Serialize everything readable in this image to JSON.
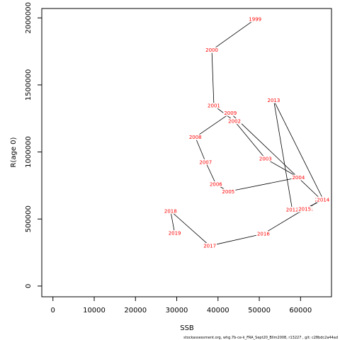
{
  "chart_data": {
    "type": "line",
    "title": "",
    "xlabel": "SSB",
    "ylabel": "R(age 0)",
    "xlim": [
      -2700,
      67500
    ],
    "ylim": [
      -80000,
      2070000
    ],
    "xticks": [
      "0",
      "10000",
      "20000",
      "30000",
      "40000",
      "50000",
      "60000"
    ],
    "xtick_values": [
      0,
      10000,
      20000,
      30000,
      40000,
      50000,
      60000
    ],
    "yticks": [
      "0",
      "500000",
      "1000000",
      "1500000",
      "2000000"
    ],
    "ytick_values": [
      0,
      500000,
      1000000,
      1500000,
      2000000
    ],
    "grid": false,
    "series": [
      {
        "line_color": "#000000",
        "label_color": "#ff0000",
        "points": [
          {
            "label": "1999",
            "x": 49000,
            "y": 1990000
          },
          {
            "label": "2000",
            "x": 38500,
            "y": 1760000
          },
          {
            "label": "2001",
            "x": 39000,
            "y": 1345000
          },
          {
            "label": "2002",
            "x": 44000,
            "y": 1230000
          },
          {
            "label": "2003",
            "x": 51500,
            "y": 950000
          },
          {
            "label": "2004",
            "x": 59500,
            "y": 810000
          },
          {
            "label": "2005",
            "x": 42500,
            "y": 705000
          },
          {
            "label": "2006",
            "x": 39500,
            "y": 760000
          },
          {
            "label": "2007",
            "x": 37000,
            "y": 925000
          },
          {
            "label": "2008",
            "x": 34500,
            "y": 1110000
          },
          {
            "label": "2009",
            "x": 43000,
            "y": 1290000
          },
          {
            "label": "2010",
            "x": 65000,
            "y": 645000
          },
          {
            "label": "2011",
            "x": 61500,
            "y": 575000
          },
          {
            "label": "2012",
            "x": 58000,
            "y": 570000
          },
          {
            "label": "2013",
            "x": 53500,
            "y": 1385000
          },
          {
            "label": "2014",
            "x": 65500,
            "y": 645000
          },
          {
            "label": "2015",
            "x": 61000,
            "y": 575000
          },
          {
            "label": "2016",
            "x": 51000,
            "y": 390000
          },
          {
            "label": "2017",
            "x": 38000,
            "y": 300000
          },
          {
            "label": "2018",
            "x": 28500,
            "y": 560000
          },
          {
            "label": "2019",
            "x": 29500,
            "y": 395000
          }
        ]
      }
    ]
  },
  "footer": {
    "credit": "stockassessment.org, whg.7b-ce-k_FRA_Sept20_Bllm2008, r13227 , git: c28bdc2a44ad"
  }
}
